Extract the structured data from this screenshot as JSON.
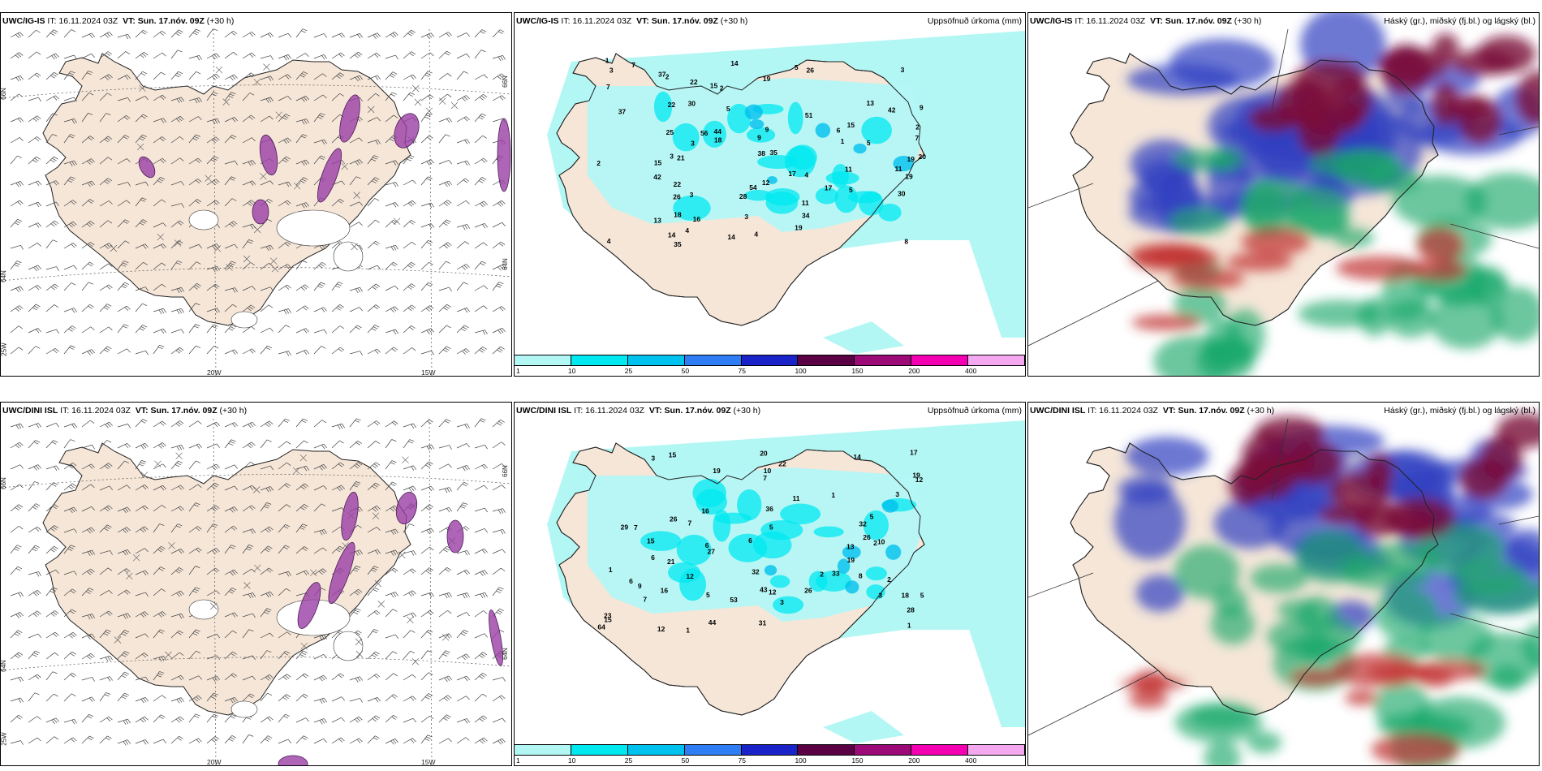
{
  "rows": [
    {
      "model": "UWC/IG-IS",
      "panels": [
        {
          "type": "wind",
          "model": "UWC/IG-IS",
          "it": "IT: 16.11.2024 03Z",
          "vt_prefix": "VT:",
          "vt": "Sun. 17.nóv. 09Z",
          "lead": "(+30 h)",
          "right_title": ""
        },
        {
          "type": "precip",
          "model": "UWC/IG-IS",
          "it": "IT: 16.11.2024 03Z",
          "vt_prefix": "VT:",
          "vt": "Sun. 17.nóv. 09Z",
          "lead": "(+30 h)",
          "right_title": "Uppsöfnuð úrkoma (mm)",
          "values": [
            "3",
            "1",
            "2",
            "3",
            "9",
            "11",
            "2",
            "3",
            "4",
            "17",
            "26",
            "35",
            "35",
            "42",
            "54",
            "56",
            "28",
            "13",
            "30",
            "44",
            "2",
            "3",
            "4",
            "3",
            "15",
            "12",
            "22",
            "5",
            "14",
            "15",
            "17",
            "22",
            "42",
            "19",
            "38",
            "25",
            "37",
            "18",
            "34",
            "51",
            "22",
            "4",
            "4",
            "5",
            "7",
            "9",
            "18",
            "5",
            "19",
            "37",
            "20",
            "21",
            "14",
            "11",
            "11",
            "7",
            "8",
            "9",
            "13",
            "14",
            "15",
            "19",
            "26",
            "30",
            "6",
            "7",
            "16",
            "19",
            "1",
            "2",
            "5",
            "3"
          ]
        },
        {
          "type": "cloud",
          "model": "UWC/IG-IS",
          "it": "IT: 16.11.2024 03Z",
          "vt_prefix": "VT:",
          "vt": "Sun. 17.nóv. 09Z",
          "lead": "(+30 h)",
          "right_title": "Háský (gr.), miðský (fj.bl.) og lágský (bl.)"
        }
      ]
    },
    {
      "model": "UWC/DINI ISL",
      "panels": [
        {
          "type": "wind",
          "model": "UWC/DINI ISL",
          "it": "IT: 16.11.2024 03Z",
          "vt_prefix": "VT:",
          "vt": "Sun. 17.nóv. 09Z",
          "lead": "(+30 h)",
          "right_title": ""
        },
        {
          "type": "precip",
          "model": "UWC/DINI ISL",
          "it": "IT: 16.11.2024 03Z",
          "vt_prefix": "VT:",
          "vt": "Sun. 17.nóv. 09Z",
          "lead": "(+30 h)",
          "right_title": "Uppsöfnuð úrkoma (mm)",
          "values": [
            "1",
            "2",
            "6",
            "5",
            "2",
            "1",
            "6",
            "12",
            "13",
            "6",
            "7",
            "8",
            "6",
            "9",
            "3",
            "11",
            "2",
            "12",
            "5",
            "14",
            "16",
            "10",
            "12",
            "12",
            "28",
            "26",
            "36",
            "31",
            "21",
            "43",
            "32",
            "27",
            "32",
            "26",
            "44",
            "19",
            "29",
            "22",
            "33",
            "19",
            "16",
            "64",
            "53",
            "17",
            "18",
            "3",
            "26",
            "10",
            "15",
            "15",
            "7",
            "7",
            "20",
            "23",
            "19",
            "5",
            "3",
            "3",
            "1",
            "7",
            "5",
            "1",
            "15"
          ]
        },
        {
          "type": "cloud",
          "model": "UWC/DINI ISL",
          "it": "IT: 16.11.2024 03Z",
          "vt_prefix": "VT:",
          "vt": "Sun. 17.nóv. 09Z",
          "lead": "(+30 h)",
          "right_title": "Háský (gr.), miðský (fj.bl.) og lágský (bl.)"
        }
      ]
    }
  ],
  "colorbar": {
    "ticks": [
      "1",
      "10",
      "25",
      "50",
      "75",
      "100",
      "150",
      "200",
      "400"
    ],
    "colors": [
      "#b3f7f5",
      "#00e8f0",
      "#00c2ee",
      "#2f7df5",
      "#1a23c8",
      "#5c0045",
      "#9b0a77",
      "#f200b2",
      "#f4a8f0"
    ]
  },
  "wind_axes": {
    "lon_labels": [
      "20W",
      "15W"
    ],
    "lat_labels": [
      "66N",
      "64N",
      "25W"
    ],
    "right_lat_labels": [
      "66N",
      "64N"
    ]
  },
  "colors": {
    "land": "#f5e6d8",
    "precip_light": "#b3f7f5",
    "precip_mid": "#00e8f0",
    "snow": "#9a3fa5",
    "cloud_high": "#7b0f3a",
    "cloud_mid": "#2f3fc0",
    "cloud_low": "#1aa86a"
  }
}
